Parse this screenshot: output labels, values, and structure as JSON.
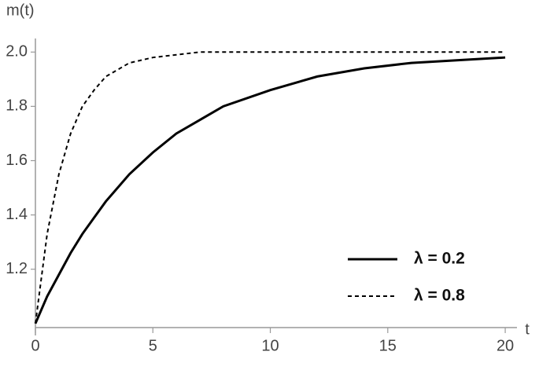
{
  "chart_data": {
    "type": "line",
    "y_label": "m(t)",
    "x_label": "t",
    "x": [
      0,
      0.5,
      1,
      1.5,
      2,
      2.5,
      3,
      4,
      5,
      6,
      7,
      8,
      10,
      12,
      14,
      16,
      18,
      20
    ],
    "series": [
      {
        "name": "λ = 0.2",
        "color": "#000000",
        "dash": "solid",
        "values": [
          1.0,
          1.1,
          1.18,
          1.26,
          1.33,
          1.39,
          1.45,
          1.55,
          1.63,
          1.7,
          1.75,
          1.8,
          1.86,
          1.91,
          1.94,
          1.96,
          1.97,
          1.98
        ]
      },
      {
        "name": "λ = 0.8",
        "color": "#000000",
        "dash": "dashed",
        "values": [
          1.0,
          1.33,
          1.55,
          1.7,
          1.8,
          1.86,
          1.91,
          1.96,
          1.98,
          1.99,
          2.0,
          2.0,
          2.0,
          2.0,
          2.0,
          2.0,
          2.0,
          2.0
        ]
      }
    ],
    "xlim": [
      0,
      20.5
    ],
    "ylim": [
      0.985,
      2.05
    ],
    "xticks": [
      0,
      5,
      10,
      15,
      20
    ],
    "yticks": [
      1.2,
      1.4,
      1.6,
      1.8,
      {
        "value": 2,
        "label": "2.0"
      }
    ],
    "legend": "lower right"
  }
}
